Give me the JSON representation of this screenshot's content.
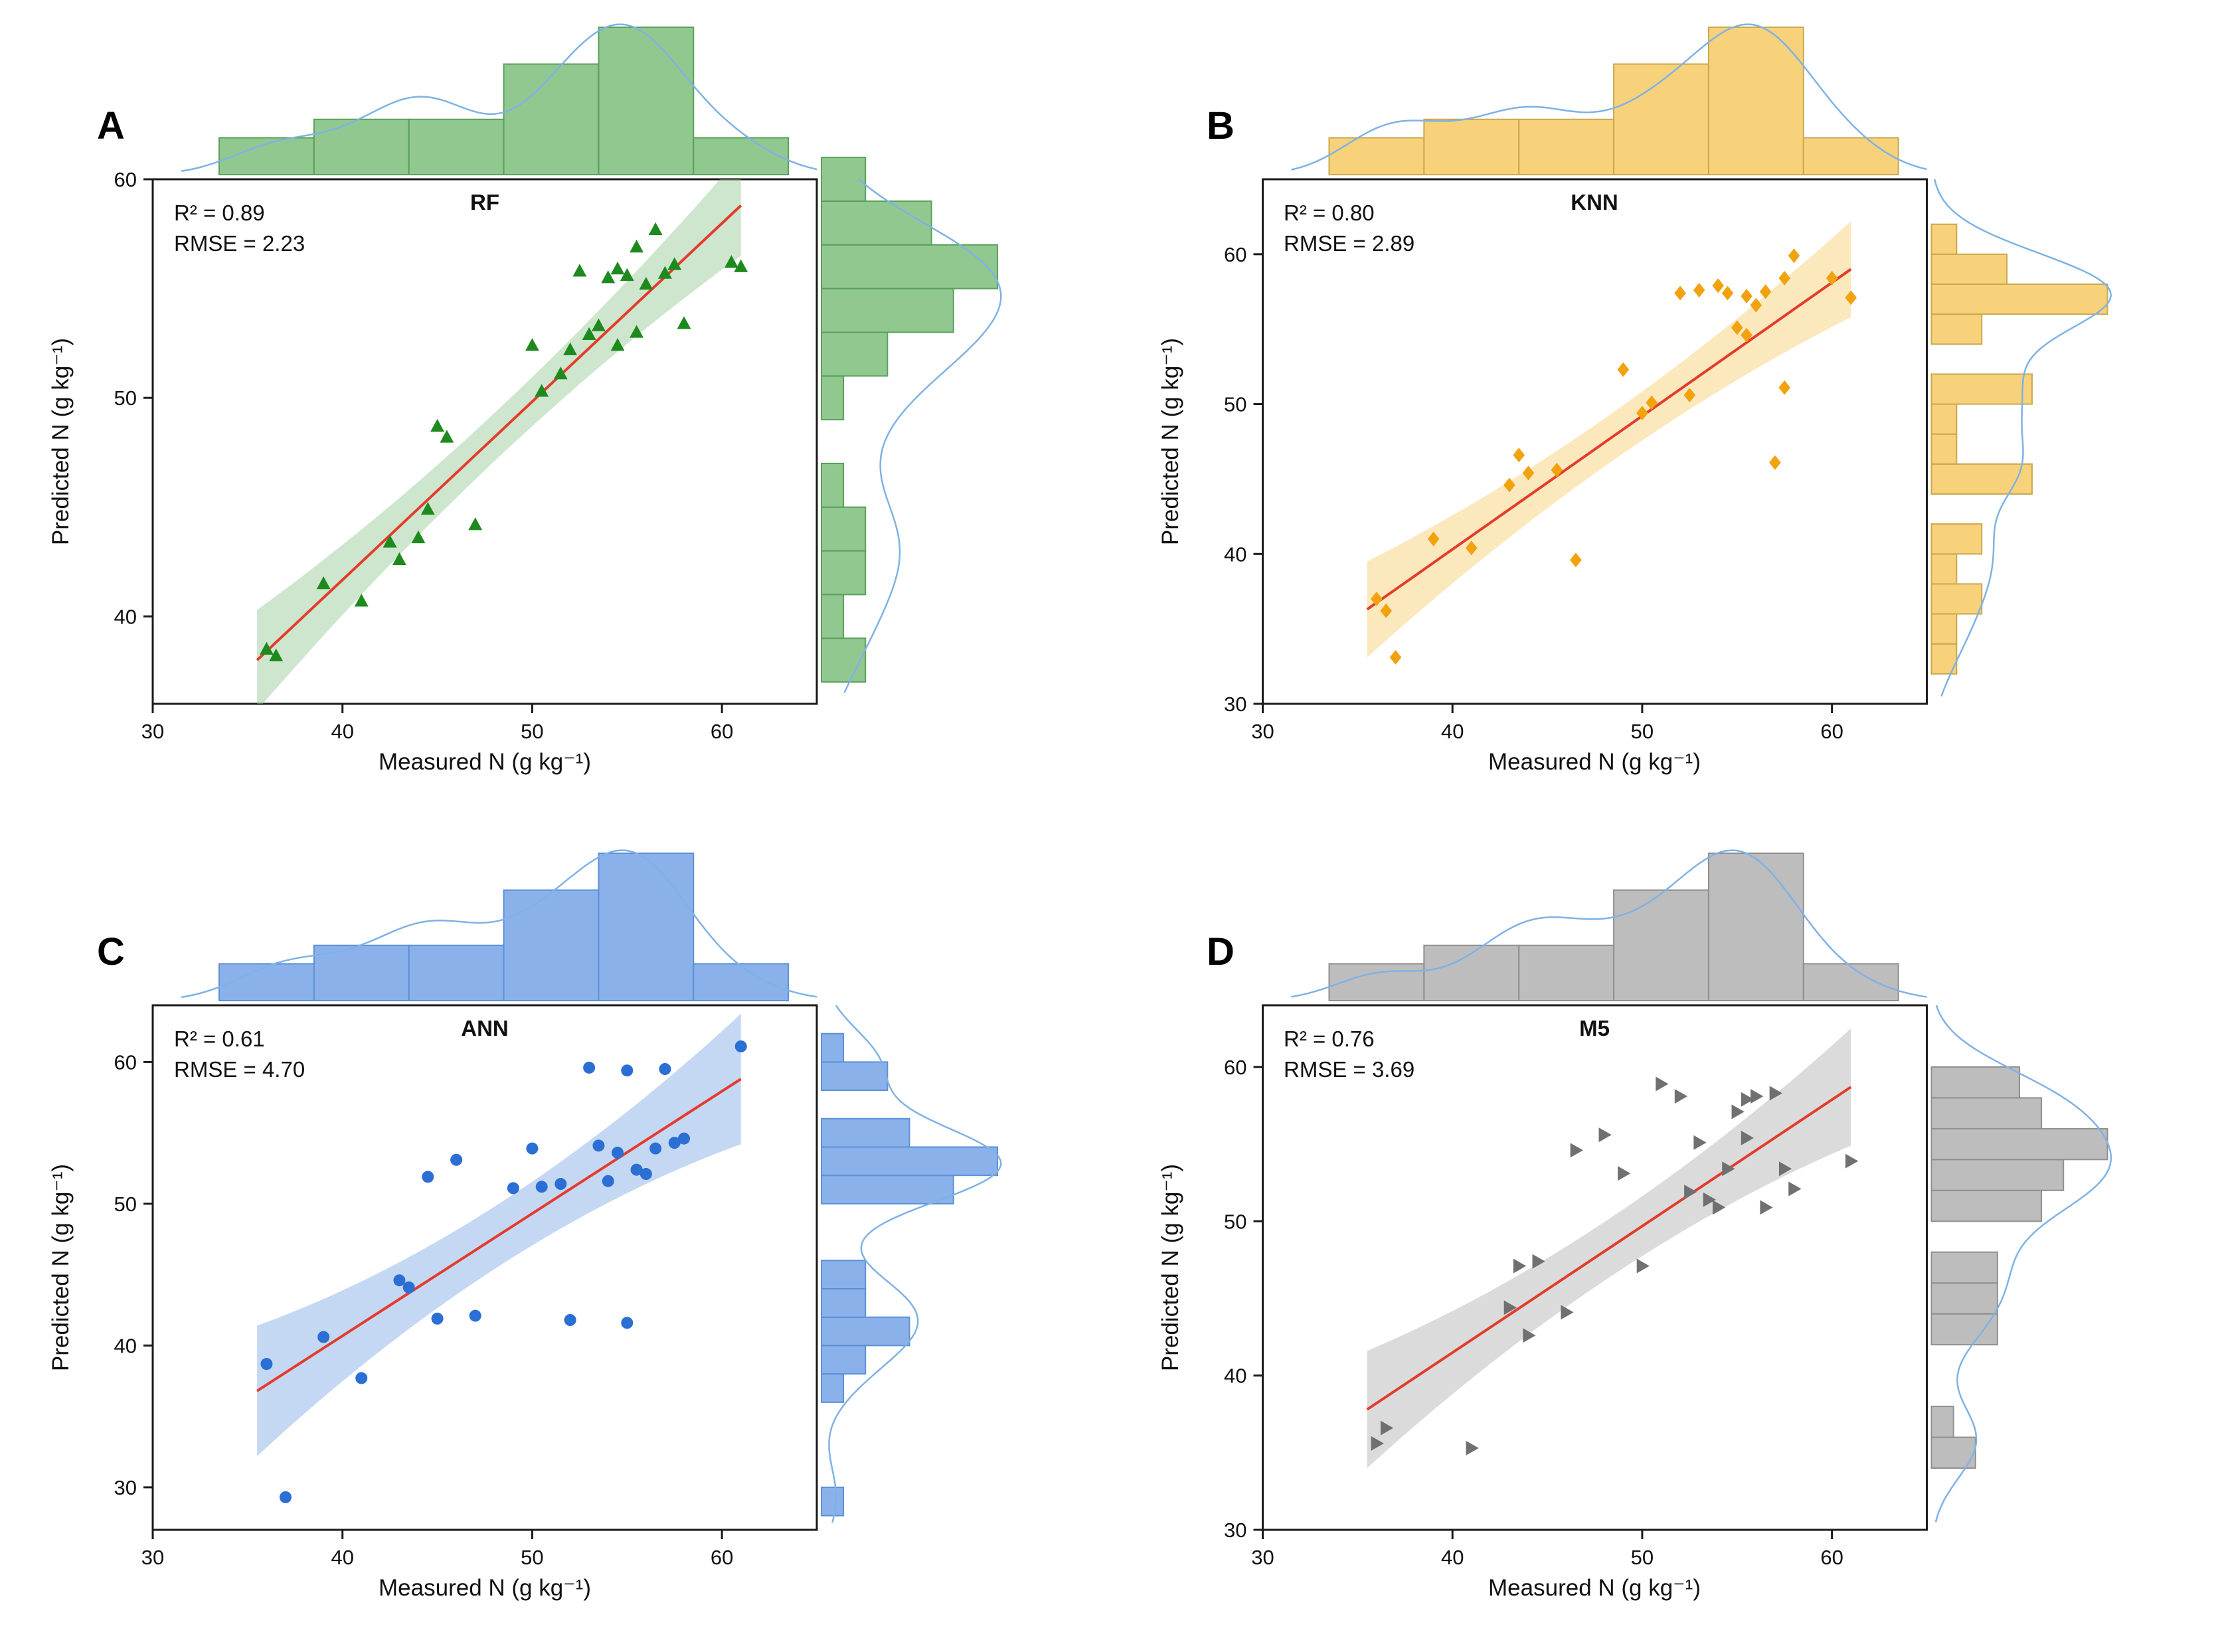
{
  "chart_data": [
    {
      "type": "scatter",
      "panel_label": "A",
      "title": "RF",
      "r2": 0.89,
      "rmse": 2.23,
      "r2_text": "R² = 0.89",
      "rmse_text": "RMSE = 2.23",
      "xlabel": "Measured N (g kg⁻¹)",
      "ylabel": "Predicted N (g kg⁻¹)",
      "x_domain": [
        30,
        65
      ],
      "x_ticks": [
        30,
        40,
        50,
        60
      ],
      "y_domain": [
        36,
        60
      ],
      "y_ticks": [
        40,
        50,
        60
      ],
      "marker": "triangle-up",
      "points": [
        [
          36,
          38.5
        ],
        [
          36.5,
          38.2
        ],
        [
          39,
          41.5
        ],
        [
          41,
          40.7
        ],
        [
          42.5,
          43.4
        ],
        [
          43,
          42.6
        ],
        [
          44,
          43.6
        ],
        [
          44.5,
          44.9
        ],
        [
          45,
          48.7
        ],
        [
          45.5,
          48.2
        ],
        [
          47,
          44.2
        ],
        [
          50,
          52.4
        ],
        [
          50.5,
          50.3
        ],
        [
          51.5,
          51.1
        ],
        [
          52,
          52.2
        ],
        [
          52.5,
          55.8
        ],
        [
          53,
          52.9
        ],
        [
          53.5,
          53.3
        ],
        [
          54,
          55.5
        ],
        [
          54.5,
          52.4
        ],
        [
          54.5,
          55.9
        ],
        [
          55,
          55.6
        ],
        [
          55.5,
          56.9
        ],
        [
          55.5,
          53.0
        ],
        [
          56,
          55.2
        ],
        [
          56.5,
          57.7
        ],
        [
          57,
          55.7
        ],
        [
          57.5,
          56.1
        ],
        [
          58,
          53.4
        ],
        [
          60.5,
          56.2
        ],
        [
          61,
          56.0
        ]
      ],
      "fit": {
        "x1": 35.5,
        "y1": 38.0,
        "x2": 61,
        "y2": 58.8,
        "band_center": 1.1,
        "band_end": 2.3
      },
      "top_hist": {
        "edges": [
          33.5,
          38.5,
          43.5,
          48.5,
          53.5,
          58.5,
          63.5
        ],
        "counts": [
          2,
          3,
          3,
          6,
          8,
          2
        ]
      },
      "right_hist": {
        "edges": [
          37,
          39,
          41,
          43,
          45,
          47,
          49,
          51,
          53,
          55,
          57,
          59,
          61
        ],
        "counts": [
          2,
          1,
          2,
          2,
          1,
          0,
          1,
          3,
          6,
          8,
          5,
          2
        ]
      },
      "colors": {
        "marker": "#1e8a1e",
        "hist_fill": "#90c890",
        "hist_stroke": "#5aa05a",
        "band": "rgba(144,200,144,0.45)",
        "kde": "#7fb2e5",
        "fit": "#e43b2c"
      }
    },
    {
      "type": "scatter",
      "panel_label": "B",
      "title": "KNN",
      "r2": 0.8,
      "rmse": 2.89,
      "r2_text": "R² = 0.80",
      "rmse_text": "RMSE = 2.89",
      "xlabel": "Measured N (g kg⁻¹)",
      "ylabel": "Predicted N (g kg⁻¹)",
      "x_domain": [
        30,
        65
      ],
      "x_ticks": [
        30,
        40,
        50,
        60
      ],
      "y_domain": [
        30,
        65
      ],
      "y_ticks": [
        30,
        40,
        50,
        60
      ],
      "marker": "diamond",
      "points": [
        [
          36,
          37.0
        ],
        [
          36.5,
          36.2
        ],
        [
          37,
          33.1
        ],
        [
          39,
          41.0
        ],
        [
          41,
          40.4
        ],
        [
          43,
          44.6
        ],
        [
          43.5,
          46.6
        ],
        [
          44,
          45.4
        ],
        [
          45.5,
          45.6
        ],
        [
          46.5,
          39.6
        ],
        [
          49,
          52.3
        ],
        [
          50,
          49.4
        ],
        [
          50.5,
          50.1
        ],
        [
          52,
          57.4
        ],
        [
          52.5,
          50.6
        ],
        [
          53,
          57.6
        ],
        [
          54,
          57.9
        ],
        [
          54.5,
          57.4
        ],
        [
          55,
          55.1
        ],
        [
          55.5,
          57.2
        ],
        [
          55.5,
          54.6
        ],
        [
          56,
          56.6
        ],
        [
          56.5,
          57.5
        ],
        [
          57,
          46.1
        ],
        [
          57.5,
          51.1
        ],
        [
          57.5,
          58.4
        ],
        [
          58,
          59.9
        ],
        [
          60,
          58.4
        ],
        [
          61,
          57.1
        ]
      ],
      "fit": {
        "x1": 35.5,
        "y1": 36.3,
        "x2": 61,
        "y2": 59.0,
        "band_center": 1.6,
        "band_end": 3.2
      },
      "top_hist": {
        "edges": [
          33.5,
          38.5,
          43.5,
          48.5,
          53.5,
          58.5,
          63.5
        ],
        "counts": [
          2,
          3,
          3,
          6,
          8,
          2
        ]
      },
      "right_hist": {
        "edges": [
          32,
          34,
          36,
          38,
          40,
          42,
          44,
          46,
          48,
          50,
          52,
          54,
          56,
          58,
          60,
          62
        ],
        "counts": [
          1,
          1,
          2,
          1,
          2,
          0,
          4,
          1,
          1,
          4,
          0,
          2,
          7,
          3,
          1
        ]
      },
      "colors": {
        "marker": "#f2a20d",
        "hist_fill": "#f7d27a",
        "hist_stroke": "#caa84e",
        "band": "rgba(247,210,122,0.5)",
        "kde": "#7fb2e5",
        "fit": "#e43b2c"
      }
    },
    {
      "type": "scatter",
      "panel_label": "C",
      "title": "ANN",
      "r2": 0.61,
      "rmse": 4.7,
      "r2_text": "R² = 0.61",
      "rmse_text": "RMSE = 4.70",
      "xlabel": "Measured N (g kg⁻¹)",
      "ylabel": "Predicted N (g kg⁻¹)",
      "x_domain": [
        30,
        65
      ],
      "x_ticks": [
        30,
        40,
        50,
        60
      ],
      "y_domain": [
        27,
        64
      ],
      "y_ticks": [
        30,
        40,
        50,
        60
      ],
      "marker": "circle",
      "points": [
        [
          36,
          38.7
        ],
        [
          37,
          29.3
        ],
        [
          39,
          40.6
        ],
        [
          41,
          37.7
        ],
        [
          43,
          44.6
        ],
        [
          43.5,
          44.1
        ],
        [
          44.5,
          51.9
        ],
        [
          45,
          41.9
        ],
        [
          46,
          53.1
        ],
        [
          47,
          42.1
        ],
        [
          49,
          51.1
        ],
        [
          50,
          53.9
        ],
        [
          50.5,
          51.2
        ],
        [
          51.5,
          51.4
        ],
        [
          52,
          41.8
        ],
        [
          53,
          59.6
        ],
        [
          53.5,
          54.1
        ],
        [
          54,
          51.6
        ],
        [
          54.5,
          53.6
        ],
        [
          55,
          59.4
        ],
        [
          55,
          41.6
        ],
        [
          55.5,
          52.4
        ],
        [
          56,
          52.1
        ],
        [
          56.5,
          53.9
        ],
        [
          57,
          59.5
        ],
        [
          57.5,
          54.3
        ],
        [
          58,
          54.6
        ],
        [
          61,
          61.1
        ]
      ],
      "fit": {
        "x1": 35.5,
        "y1": 36.8,
        "x2": 61,
        "y2": 58.8,
        "band_center": 2.2,
        "band_end": 4.6
      },
      "top_hist": {
        "edges": [
          33.5,
          38.5,
          43.5,
          48.5,
          53.5,
          58.5,
          63.5
        ],
        "counts": [
          2,
          3,
          3,
          6,
          8,
          2
        ]
      },
      "right_hist": {
        "edges": [
          28,
          30,
          32,
          34,
          36,
          38,
          40,
          42,
          44,
          46,
          48,
          50,
          52,
          54,
          56,
          58,
          60,
          62
        ],
        "counts": [
          1,
          0,
          0,
          0,
          1,
          2,
          4,
          2,
          2,
          0,
          0,
          6,
          8,
          4,
          0,
          3,
          1
        ]
      },
      "colors": {
        "marker": "#2b6fd4",
        "hist_fill": "#8ab1ea",
        "hist_stroke": "#5d8fd6",
        "band": "rgba(138,177,234,0.5)",
        "kde": "#7fb2e5",
        "fit": "#e43b2c"
      }
    },
    {
      "type": "scatter",
      "panel_label": "D",
      "title": "M5",
      "r2": 0.76,
      "rmse": 3.69,
      "r2_text": "R² = 0.76",
      "rmse_text": "RMSE = 3.69",
      "xlabel": "Measured N (g kg⁻¹)",
      "ylabel": "Predicted N (g kg⁻¹)",
      "x_domain": [
        30,
        65
      ],
      "x_ticks": [
        30,
        40,
        50,
        60
      ],
      "y_domain": [
        30,
        64
      ],
      "y_ticks": [
        30,
        40,
        50,
        60
      ],
      "marker": "triangle-right",
      "points": [
        [
          36,
          35.6
        ],
        [
          36.5,
          36.6
        ],
        [
          41,
          35.3
        ],
        [
          43,
          44.4
        ],
        [
          43.5,
          47.1
        ],
        [
          44,
          42.6
        ],
        [
          44.5,
          47.4
        ],
        [
          46,
          44.1
        ],
        [
          46.5,
          54.6
        ],
        [
          48,
          55.6
        ],
        [
          49,
          53.1
        ],
        [
          50,
          47.1
        ],
        [
          51,
          58.9
        ],
        [
          52,
          58.1
        ],
        [
          52.5,
          51.9
        ],
        [
          53,
          55.1
        ],
        [
          53.5,
          51.4
        ],
        [
          54,
          50.9
        ],
        [
          54.5,
          53.4
        ],
        [
          55,
          57.1
        ],
        [
          55.5,
          55.4
        ],
        [
          55.5,
          57.9
        ],
        [
          56,
          58.1
        ],
        [
          56.5,
          50.9
        ],
        [
          57,
          58.3
        ],
        [
          57.5,
          53.4
        ],
        [
          58,
          52.1
        ],
        [
          61,
          53.9
        ]
      ],
      "fit": {
        "x1": 35.5,
        "y1": 37.8,
        "x2": 61,
        "y2": 58.7,
        "band_center": 1.9,
        "band_end": 3.8
      },
      "top_hist": {
        "edges": [
          33.5,
          38.5,
          43.5,
          48.5,
          53.5,
          58.5,
          63.5
        ],
        "counts": [
          2,
          3,
          3,
          6,
          8,
          2
        ]
      },
      "right_hist": {
        "edges": [
          34,
          36,
          38,
          40,
          42,
          44,
          46,
          48,
          50,
          52,
          54,
          56,
          58,
          60
        ],
        "counts": [
          2,
          1,
          0,
          0,
          3,
          3,
          3,
          0,
          5,
          6,
          8,
          5,
          4
        ]
      },
      "colors": {
        "marker": "#707070",
        "hist_fill": "#bdbdbd",
        "hist_stroke": "#8f8f8f",
        "band": "rgba(189,189,189,0.55)",
        "kde": "#7fb2e5",
        "fit": "#e43b2c"
      }
    }
  ]
}
